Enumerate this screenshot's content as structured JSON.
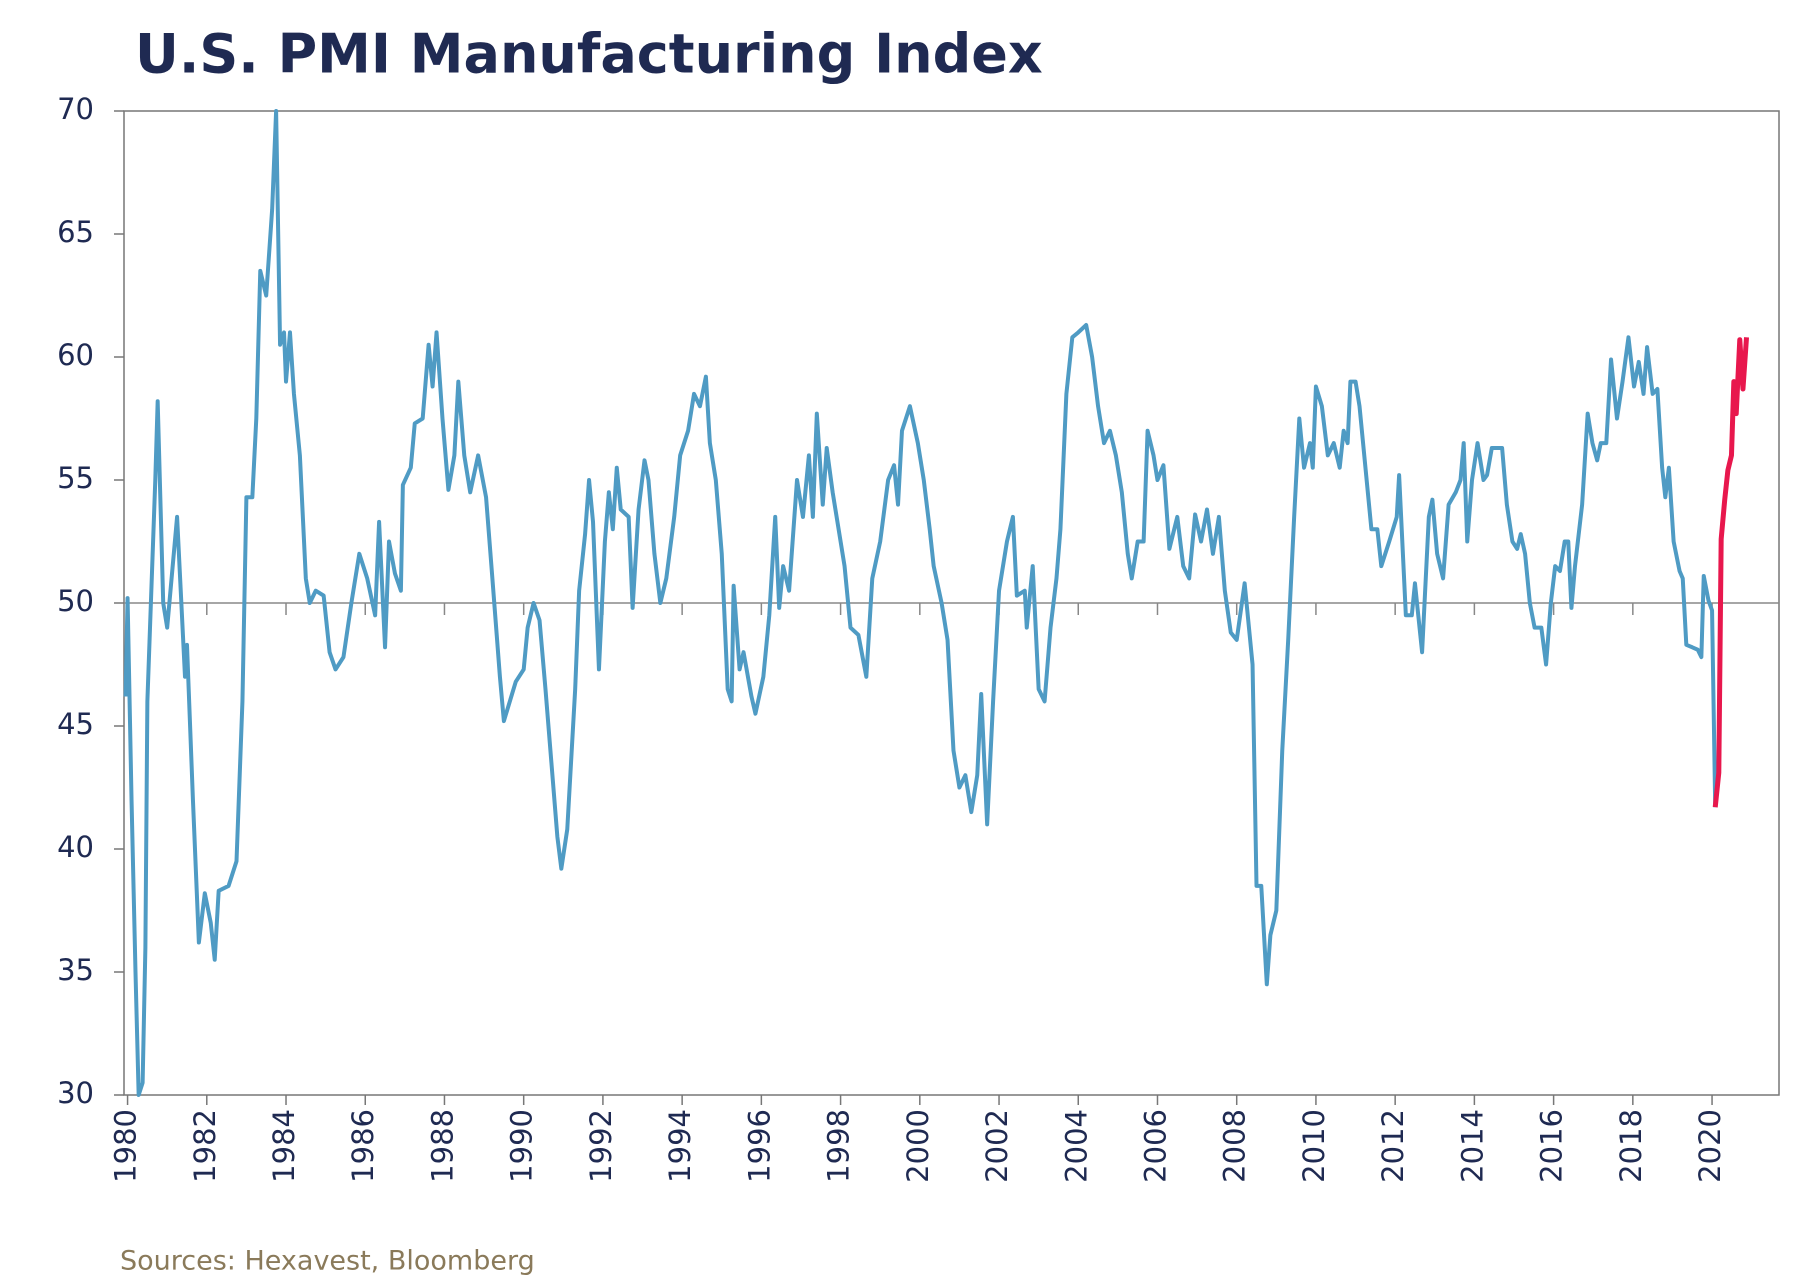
{
  "chart_data": {
    "type": "line",
    "title": "U.S. PMI Manufacturing Index",
    "source": "Sources: Hexavest, Bloomberg",
    "xlim": [
      1979.91,
      2021.69
    ],
    "xticks": [
      1980,
      1982,
      1984,
      1986,
      1988,
      1990,
      1992,
      1994,
      1996,
      1998,
      2000,
      2002,
      2004,
      2006,
      2008,
      2010,
      2012,
      2014,
      2016,
      2018,
      2020
    ],
    "ylim": [
      30,
      70
    ],
    "yticks": [
      30,
      35,
      40,
      45,
      50,
      55,
      60,
      65,
      70
    ],
    "reference_line": 50,
    "series": [
      {
        "color": "#4f9bc4",
        "x": [
          1979.95,
          1980.0,
          1980.1,
          1980.2,
          1980.28,
          1980.38,
          1980.45,
          1980.5,
          1980.7,
          1980.76,
          1980.9,
          1981.0,
          1981.25,
          1981.45,
          1981.5,
          1981.65,
          1981.8,
          1981.95,
          1982.1,
          1982.2,
          1982.3,
          1982.55,
          1982.75,
          1982.9,
          1983.0,
          1983.15,
          1983.25,
          1983.35,
          1983.5,
          1983.65,
          1983.75,
          1983.85,
          1983.95,
          1984.0,
          1984.1,
          1984.2,
          1984.35,
          1984.5,
          1984.6,
          1984.75,
          1984.95,
          1985.1,
          1985.25,
          1985.45,
          1985.65,
          1985.85,
          1986.05,
          1986.25,
          1986.35,
          1986.5,
          1986.6,
          1986.75,
          1986.9,
          1986.95,
          1987.15,
          1987.25,
          1987.45,
          1987.6,
          1987.7,
          1987.8,
          1987.95,
          1988.1,
          1988.25,
          1988.35,
          1988.5,
          1988.65,
          1988.85,
          1989.05,
          1989.2,
          1989.4,
          1989.5,
          1989.8,
          1990.0,
          1990.1,
          1990.25,
          1990.4,
          1990.55,
          1990.7,
          1990.85,
          1990.95,
          1991.1,
          1991.3,
          1991.4,
          1991.55,
          1991.65,
          1991.75,
          1991.9,
          1992.05,
          1992.15,
          1992.25,
          1992.35,
          1992.45,
          1992.65,
          1992.75,
          1992.9,
          1993.05,
          1993.15,
          1993.3,
          1993.45,
          1993.6,
          1993.8,
          1993.95,
          1994.15,
          1994.3,
          1994.45,
          1994.6,
          1994.7,
          1994.85,
          1995.0,
          1995.15,
          1995.25,
          1995.3,
          1995.45,
          1995.55,
          1995.75,
          1995.85,
          1996.05,
          1996.2,
          1996.35,
          1996.45,
          1996.55,
          1996.7,
          1996.9,
          1997.05,
          1997.2,
          1997.3,
          1997.4,
          1997.55,
          1997.65,
          1997.8,
          1997.95,
          1998.1,
          1998.25,
          1998.45,
          1998.65,
          1998.8,
          1999.0,
          1999.2,
          1999.35,
          1999.45,
          1999.55,
          1999.75,
          1999.95,
          2000.1,
          2000.25,
          2000.35,
          2000.55,
          2000.7,
          2000.85,
          2001.0,
          2001.15,
          2001.3,
          2001.45,
          2001.55,
          2001.7,
          2001.85,
          2002.0,
          2002.2,
          2002.35,
          2002.45,
          2002.65,
          2002.7,
          2002.85,
          2003.0,
          2003.15,
          2003.3,
          2003.45,
          2003.55,
          2003.7,
          2003.85,
          2004.0,
          2004.2,
          2004.35,
          2004.5,
          2004.65,
          2004.8,
          2004.95,
          2005.1,
          2005.25,
          2005.35,
          2005.5,
          2005.65,
          2005.75,
          2005.9,
          2006.0,
          2006.15,
          2006.3,
          2006.5,
          2006.65,
          2006.8,
          2006.95,
          2007.1,
          2007.25,
          2007.4,
          2007.55,
          2007.7,
          2007.85,
          2008.0,
          2008.2,
          2008.4,
          2008.5,
          2008.62,
          2008.76,
          2008.85,
          2009.0,
          2009.15,
          2009.3,
          2009.45,
          2009.58,
          2009.7,
          2009.85,
          2009.92,
          2010.0,
          2010.15,
          2010.3,
          2010.45,
          2010.6,
          2010.7,
          2010.8,
          2010.87,
          2011.0,
          2011.1,
          2011.25,
          2011.4,
          2011.55,
          2011.65,
          2011.85,
          2012.04,
          2012.1,
          2012.27,
          2012.42,
          2012.5,
          2012.68,
          2012.85,
          2012.94,
          2013.06,
          2013.21,
          2013.35,
          2013.53,
          2013.65,
          2013.73,
          2013.82,
          2013.94,
          2014.08,
          2014.23,
          2014.32,
          2014.44,
          2014.58,
          2014.7,
          2014.82,
          2014.96,
          2015.08,
          2015.17,
          2015.28,
          2015.4,
          2015.52,
          2015.69,
          2015.81,
          2015.93,
          2016.04,
          2016.16,
          2016.28,
          2016.37,
          2016.45,
          2016.54,
          2016.72,
          2016.86,
          2016.98,
          2017.1,
          2017.19,
          2017.33,
          2017.45,
          2017.6,
          2017.74,
          2017.89,
          2018.03,
          2018.15,
          2018.27,
          2018.36,
          2018.5,
          2018.62,
          2018.74,
          2018.82,
          2018.91,
          2019.03,
          2019.18,
          2019.26,
          2019.35,
          2019.5,
          2019.64,
          2019.73,
          2019.79,
          2019.91,
          2020.0,
          2020.08
        ],
        "values": [
          46.2,
          50.2,
          42,
          35,
          30,
          30.5,
          36,
          46,
          55,
          58.2,
          50,
          49,
          53.5,
          47,
          48.3,
          42,
          36.2,
          38.2,
          37,
          35.5,
          38.3,
          38.5,
          39.5,
          46,
          54.3,
          54.3,
          57.5,
          63.5,
          62.5,
          66,
          70,
          60.5,
          61,
          59,
          61,
          58.5,
          56,
          51,
          50,
          50.5,
          50.3,
          48,
          47.3,
          47.8,
          50,
          52,
          51,
          49.5,
          53.3,
          48.2,
          52.5,
          51.2,
          50.5,
          54.8,
          55.5,
          57.3,
          57.5,
          60.5,
          58.8,
          61,
          57.5,
          54.6,
          56,
          59,
          56,
          54.5,
          56,
          54.3,
          51.2,
          47,
          45.2,
          46.8,
          47.3,
          49,
          50,
          49.3,
          46.5,
          43.5,
          40.5,
          39.2,
          40.8,
          46.5,
          50.5,
          52.8,
          55,
          53.3,
          47.3,
          52.5,
          54.5,
          53,
          55.5,
          53.8,
          53.5,
          49.8,
          53.8,
          55.8,
          55,
          52,
          50,
          51,
          53.5,
          56,
          57,
          58.5,
          58,
          59.2,
          56.5,
          55,
          52,
          46.5,
          46,
          50.7,
          47.3,
          48,
          46.2,
          45.5,
          47,
          49.5,
          53.5,
          49.8,
          51.5,
          50.5,
          55,
          53.5,
          56,
          53.5,
          57.7,
          54,
          56.3,
          54.5,
          53,
          51.5,
          49,
          48.7,
          47,
          51,
          52.5,
          55,
          55.6,
          54,
          57,
          58,
          56.5,
          55,
          53,
          51.5,
          50,
          48.5,
          44,
          42.5,
          43,
          41.5,
          43,
          46.3,
          41,
          46,
          50.5,
          52.5,
          53.5,
          50.3,
          50.5,
          49,
          51.5,
          46.5,
          46,
          49,
          51,
          53,
          58.5,
          60.8,
          61,
          61.3,
          60,
          58,
          56.5,
          57,
          56,
          54.5,
          52,
          51,
          52.5,
          52.5,
          57,
          56,
          55,
          55.6,
          52.2,
          53.5,
          51.5,
          51,
          53.6,
          52.5,
          53.8,
          52,
          53.5,
          50.5,
          48.8,
          48.5,
          50.8,
          47.5,
          38.5,
          38.5,
          34.5,
          36.5,
          37.5,
          44,
          48.5,
          53.5,
          57.5,
          55.5,
          56.5,
          55.5,
          58.8,
          58,
          56,
          56.5,
          55.5,
          57,
          56.5,
          59,
          59,
          58,
          55.5,
          53,
          53,
          51.5,
          52.5,
          53.5,
          55.2,
          49.5,
          49.5,
          50.8,
          48,
          53.5,
          54.2,
          52,
          51,
          54,
          54.5,
          55,
          56.5,
          52.5,
          55,
          56.5,
          55,
          55.2,
          56.3,
          56.3,
          56.3,
          54,
          52.5,
          52.2,
          52.8,
          52,
          50,
          49,
          49,
          47.5,
          50,
          51.5,
          51.3,
          52.5,
          52.5,
          49.8,
          51.5,
          54,
          57.7,
          56.5,
          55.8,
          56.5,
          56.5,
          59.9,
          57.5,
          59,
          60.8,
          58.8,
          59.8,
          58.5,
          60.4,
          58.5,
          58.7,
          55.5,
          54.3,
          55.5,
          52.5,
          51.3,
          51,
          48.3,
          48.2,
          48.1,
          47.8,
          51.1,
          50.1,
          49.7,
          41.7
        ]
      },
      {
        "color": "#e8174d",
        "x": [
          2020.08,
          2020.17,
          2020.23,
          2020.32,
          2020.4,
          2020.49,
          2020.55,
          2020.61,
          2020.7,
          2020.78,
          2020.87
        ],
        "values": [
          41.7,
          43.1,
          52.6,
          54.2,
          55.4,
          56,
          59,
          57.7,
          60.7,
          58.7,
          60.8
        ]
      }
    ]
  }
}
